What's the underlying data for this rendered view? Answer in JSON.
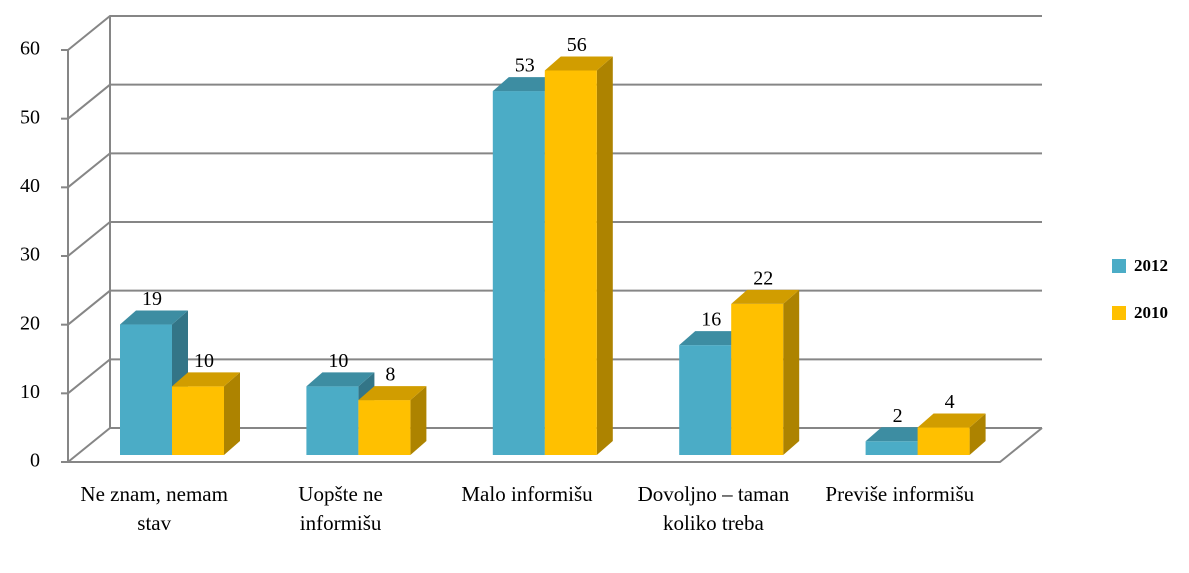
{
  "chart_data": {
    "type": "bar3d",
    "categories": [
      "Ne znam, nemam stav",
      "Uopšte ne informišu",
      "Malo informišu",
      "Dovoljno – taman koliko treba",
      "Previše informišu"
    ],
    "series": [
      {
        "name": "2012",
        "color": "#4bacc6",
        "values": [
          19,
          10,
          53,
          16,
          2
        ]
      },
      {
        "name": "2010",
        "color": "#ffc000",
        "values": [
          10,
          8,
          56,
          22,
          4
        ]
      }
    ],
    "ylim": [
      0,
      60
    ],
    "yticks": [
      0,
      10,
      20,
      30,
      40,
      50,
      60
    ],
    "grid": true,
    "legend": "right"
  }
}
